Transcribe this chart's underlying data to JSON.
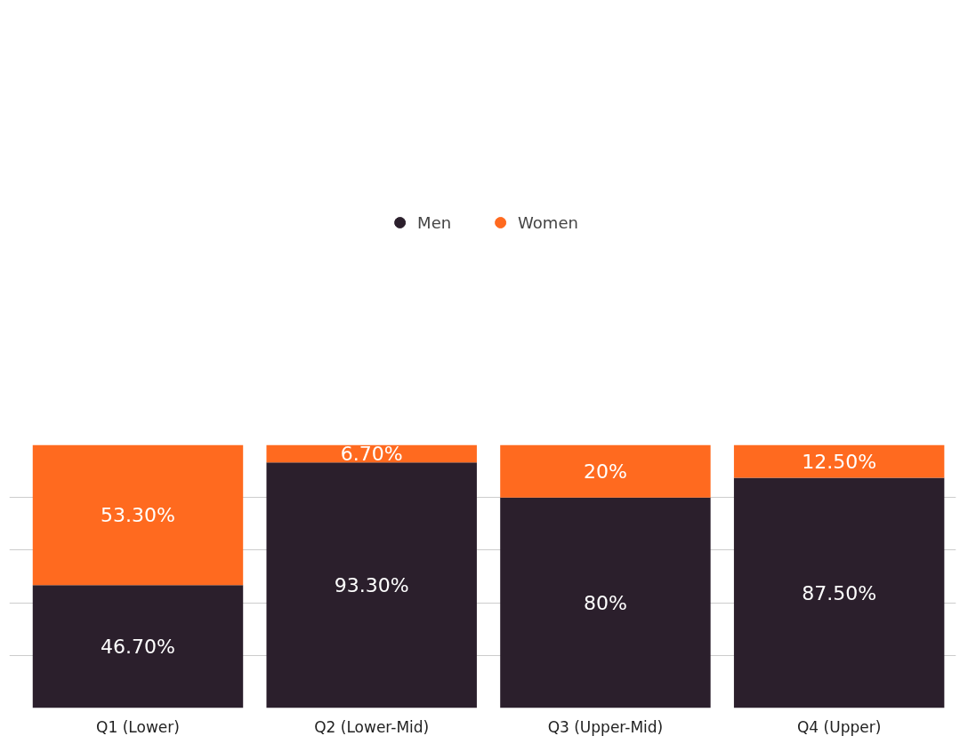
{
  "chart_data": {
    "type": "bar",
    "stacked": true,
    "categories": [
      "Q1 (Lower)",
      "Q2 (Lower-Mid)",
      "Q3 (Upper-Mid)",
      "Q4 (Upper)"
    ],
    "series": [
      {
        "name": "Men",
        "color": "#2b1f2c",
        "values": [
          46.7,
          93.3,
          80,
          87.5
        ],
        "value_labels": [
          "46.70%",
          "93.30%",
          "80%",
          "87.50%"
        ]
      },
      {
        "name": "Women",
        "color": "#ff6a1f",
        "values": [
          53.3,
          6.7,
          20,
          12.5
        ],
        "value_labels": [
          "53.30%",
          "6.70%",
          "20%",
          "12.50%"
        ]
      }
    ],
    "ylim": [
      0,
      100
    ],
    "yticks": [
      {
        "value": 20,
        "label": null
      },
      {
        "value": 40,
        "label": null
      },
      {
        "value": 60,
        "label": null
      },
      {
        "value": 80,
        "label": null
      }
    ],
    "tick_labels": "x",
    "grid": "y",
    "legend": "top"
  }
}
